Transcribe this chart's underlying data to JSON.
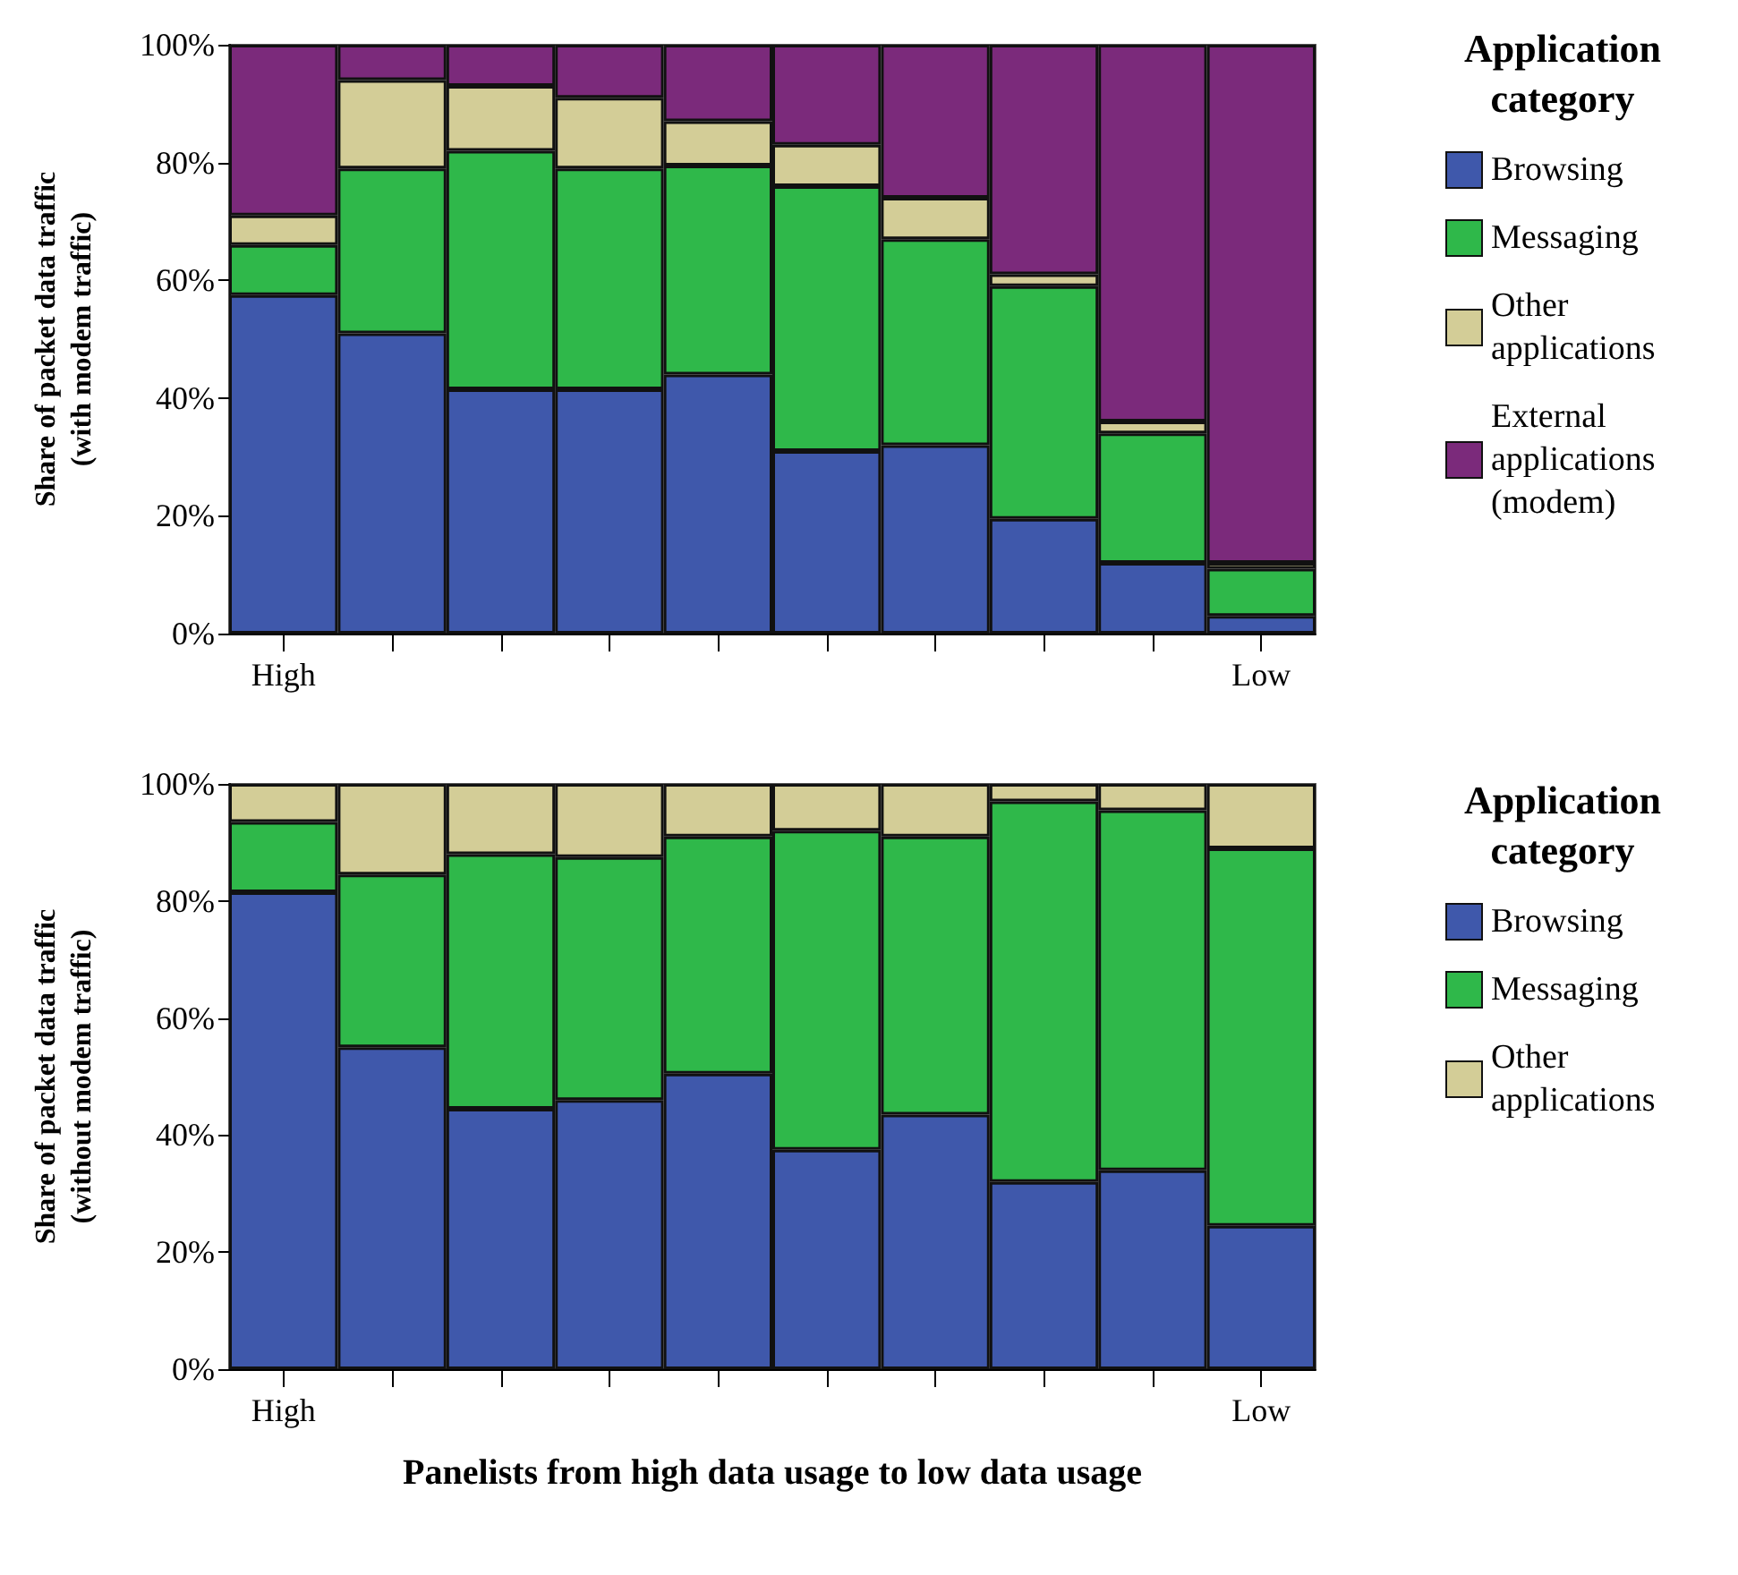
{
  "chart_data": [
    {
      "type": "bar",
      "stacked": true,
      "ylabel": "Share of packet data traffic\n(with modem traffic)",
      "legend_title": "Application\ncategory",
      "legend": "right",
      "grid": false,
      "categories": [
        "High",
        null,
        null,
        null,
        null,
        null,
        null,
        null,
        null,
        "Low"
      ],
      "ylim": [
        0,
        100
      ],
      "yticks": [
        {
          "value": 0,
          "label": "0%"
        },
        {
          "value": 20,
          "label": "20%"
        },
        {
          "value": 40,
          "label": "40%"
        },
        {
          "value": 60,
          "label": "60%"
        },
        {
          "value": 80,
          "label": "80%"
        },
        {
          "value": 100,
          "label": "100%"
        }
      ],
      "series": [
        {
          "name": "Browsing",
          "color": "#3f58ab",
          "values": [
            57.5,
            51,
            41.5,
            41.5,
            44,
            31,
            32,
            19.5,
            12,
            3
          ]
        },
        {
          "name": "Messaging",
          "color": "#2fb84a",
          "values": [
            8.5,
            28,
            40.5,
            37.5,
            35.5,
            45,
            35,
            39.5,
            22,
            8
          ]
        },
        {
          "name": "Other applications",
          "color": "#d3cd97",
          "values": [
            5,
            15,
            11,
            12,
            7.5,
            7,
            7,
            2,
            2,
            1
          ]
        },
        {
          "name": "External applications (modem)",
          "color": "#7b2a7b",
          "values": [
            29,
            6,
            7,
            9,
            13,
            17,
            26,
            39,
            64,
            88
          ]
        }
      ]
    },
    {
      "type": "bar",
      "stacked": true,
      "ylabel": "Share of packet data traffic\n(without modem traffic)",
      "xlabel": "Panelists from high data usage to low data usage",
      "legend_title": "Application\ncategory",
      "legend": "right",
      "grid": false,
      "categories": [
        "High",
        null,
        null,
        null,
        null,
        null,
        null,
        null,
        null,
        "Low"
      ],
      "ylim": [
        0,
        100
      ],
      "yticks": [
        {
          "value": 0,
          "label": "0%"
        },
        {
          "value": 20,
          "label": "20%"
        },
        {
          "value": 40,
          "label": "40%"
        },
        {
          "value": 60,
          "label": "60%"
        },
        {
          "value": 80,
          "label": "80%"
        },
        {
          "value": 100,
          "label": "100%"
        }
      ],
      "series": [
        {
          "name": "Browsing",
          "color": "#3f58ab",
          "values": [
            81.5,
            55,
            44.5,
            46,
            50.5,
            37.5,
            43.5,
            32,
            34,
            24.5
          ]
        },
        {
          "name": "Messaging",
          "color": "#2fb84a",
          "values": [
            12,
            29.5,
            43.5,
            41.5,
            40.5,
            54.5,
            47.5,
            65,
            61.5,
            64.5
          ]
        },
        {
          "name": "Other applications",
          "color": "#d3cd97",
          "values": [
            6.5,
            15.5,
            12,
            12.5,
            9,
            8,
            9,
            3,
            4.5,
            11
          ]
        }
      ]
    }
  ]
}
